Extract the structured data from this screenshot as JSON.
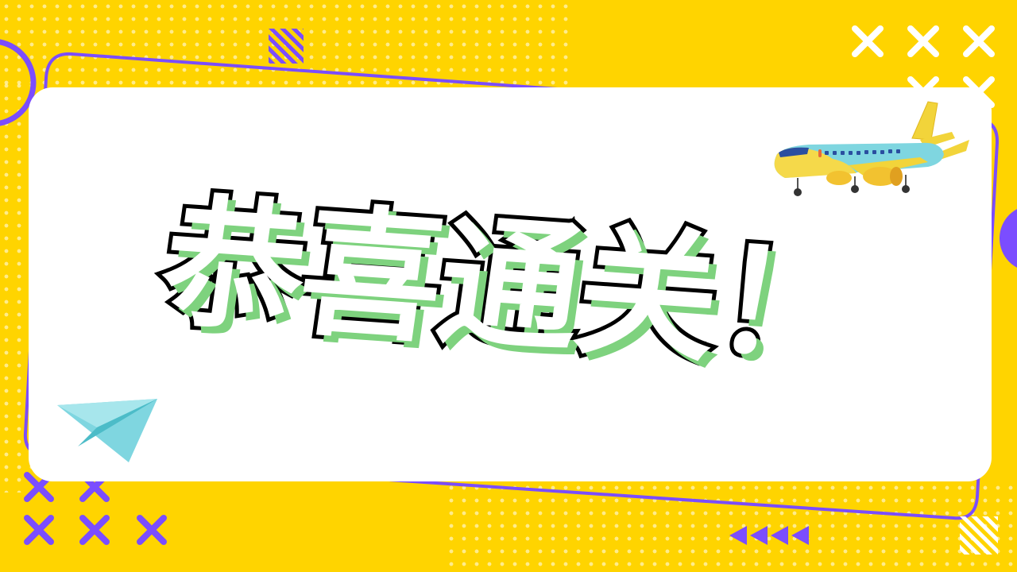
{
  "banner": {
    "headline": "恭喜通关！"
  },
  "colors": {
    "background": "#ffd400",
    "accent_purple": "#7b4dff",
    "card": "#ffffff",
    "text_shadow": "#7ed27e",
    "plane_cyan": "#7fd6e0"
  },
  "icons": {
    "airplane": "airplane-icon",
    "paper_plane": "paper-plane-icon",
    "cross": "x-mark-icon",
    "arrows": "left-arrows-icon"
  }
}
